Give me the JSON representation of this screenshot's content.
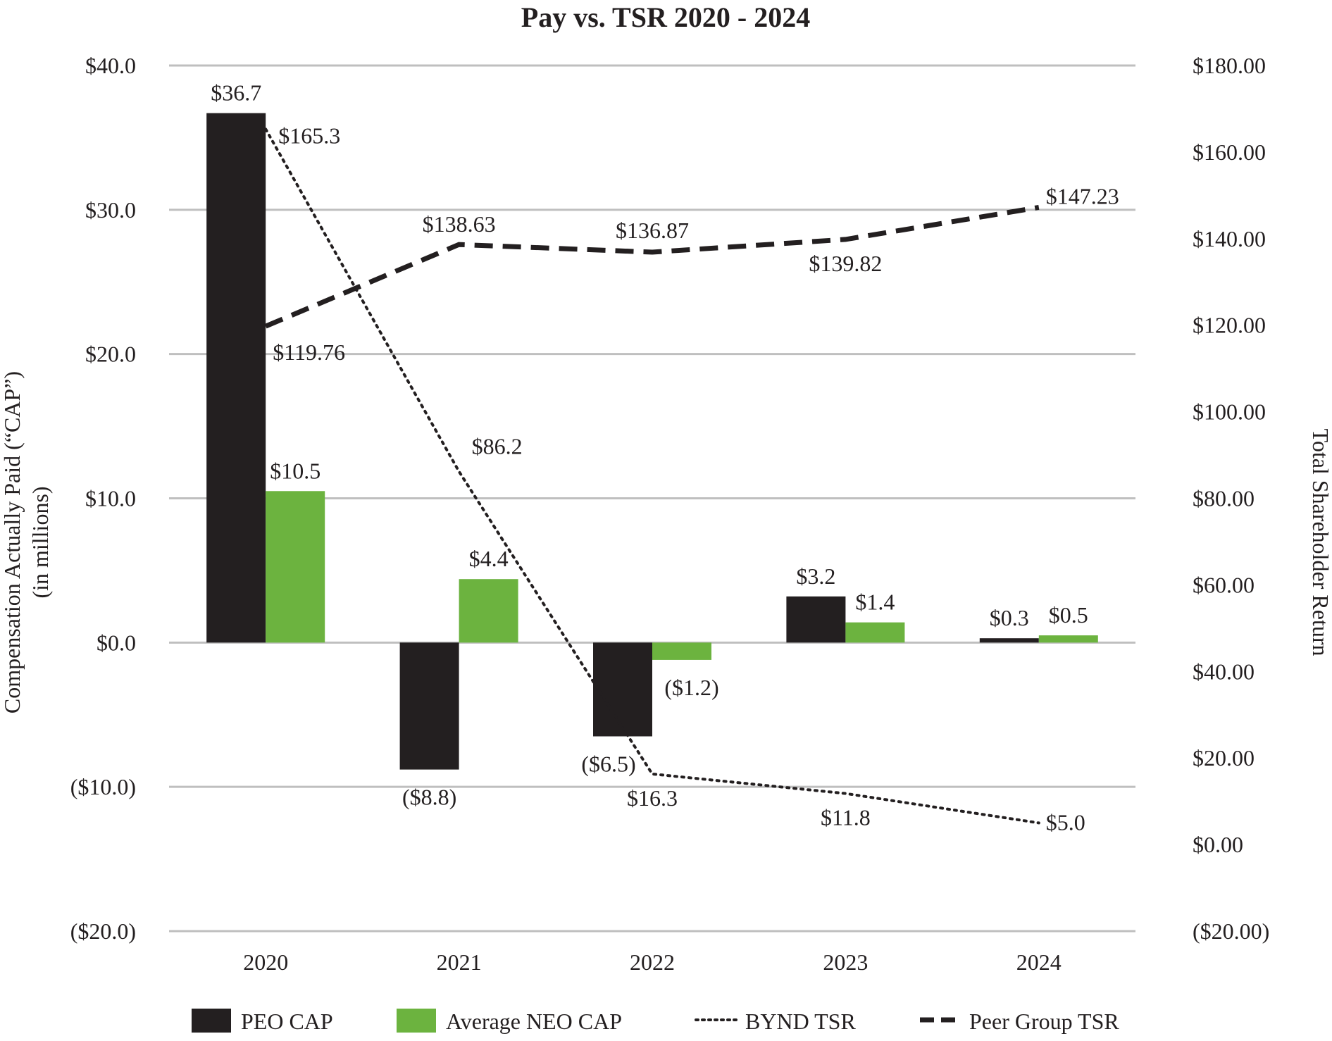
{
  "chart_data": {
    "type": "bar",
    "title": "Pay vs. TSR 2020 - 2024",
    "categories": [
      "2020",
      "2021",
      "2022",
      "2023",
      "2024"
    ],
    "y_left": {
      "label": "Compensation Actually Paid (“CAP”)",
      "label_line2": "(in millions)",
      "ylim": [
        -20,
        40
      ],
      "ticks": [
        40,
        30,
        20,
        10,
        0,
        -10,
        -20
      ],
      "tick_labels": [
        "$40.0",
        "$30.0",
        "$20.0",
        "$10.0",
        "$0.0",
        "($10.0)",
        "($20.0)"
      ]
    },
    "y_right": {
      "label": "Total Shareholder Return",
      "ylim": [
        -20,
        180
      ],
      "ticks": [
        180,
        160,
        140,
        120,
        100,
        80,
        60,
        40,
        20,
        0,
        -20
      ],
      "tick_labels": [
        "$180.00",
        "$160.00",
        "$140.00",
        "$120.00",
        "$100.00",
        "$80.00",
        "$60.00",
        "$40.00",
        "$20.00",
        "$0.00",
        "($20.00)"
      ]
    },
    "grid": true,
    "legend_position": "bottom",
    "series": [
      {
        "name": "PEO CAP",
        "kind": "bar",
        "axis": "left",
        "color": "#231f20",
        "values": [
          36.7,
          -8.8,
          -6.5,
          3.2,
          0.3
        ],
        "labels": [
          "$36.7",
          "($8.8)",
          "($6.5)",
          "$3.2",
          "$0.3"
        ]
      },
      {
        "name": "Average NEO CAP",
        "kind": "bar",
        "axis": "left",
        "color": "#6cb33f",
        "values": [
          10.5,
          4.4,
          -1.2,
          1.4,
          0.5
        ],
        "labels": [
          "$10.5",
          "$4.4",
          "($1.2)",
          "$1.4",
          "$0.5"
        ]
      },
      {
        "name": "BYND TSR",
        "kind": "line",
        "style": "dotted",
        "axis": "right",
        "color": "#231f20",
        "values": [
          165.3,
          86.2,
          16.3,
          11.8,
          5.0
        ],
        "labels": [
          "$165.3",
          "$86.2",
          "$16.3",
          "$11.8",
          "$5.0"
        ]
      },
      {
        "name": "Peer Group TSR",
        "kind": "line",
        "style": "dashed",
        "axis": "right",
        "color": "#231f20",
        "values": [
          119.76,
          138.63,
          136.87,
          139.82,
          147.23
        ],
        "labels": [
          "$119.76",
          "$138.63",
          "$136.87",
          "$139.82",
          "$147.23"
        ]
      }
    ]
  }
}
